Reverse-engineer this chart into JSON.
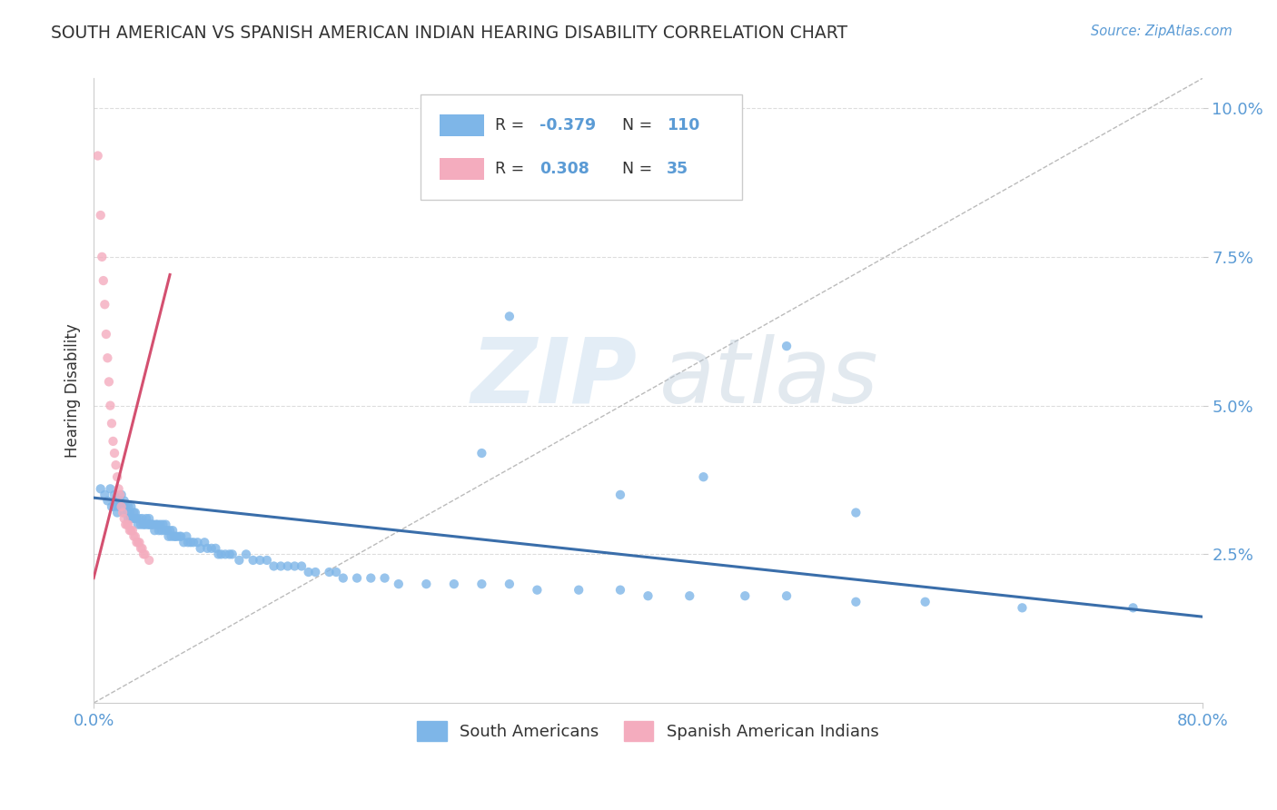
{
  "title": "SOUTH AMERICAN VS SPANISH AMERICAN INDIAN HEARING DISABILITY CORRELATION CHART",
  "source": "Source: ZipAtlas.com",
  "ylabel": "Hearing Disability",
  "xlim": [
    0.0,
    0.8
  ],
  "ylim": [
    0.0,
    0.105
  ],
  "ytick_labels": [
    "2.5%",
    "5.0%",
    "7.5%",
    "10.0%"
  ],
  "ytick_values": [
    0.025,
    0.05,
    0.075,
    0.1
  ],
  "blue_color": "#7EB6E8",
  "pink_color": "#F4ACBE",
  "blue_line_color": "#3A6EAA",
  "pink_line_color": "#D45070",
  "title_color": "#333333",
  "source_color": "#5B9BD5",
  "axis_label_color": "#333333",
  "tick_color": "#5B9BD5",
  "watermark_zip": "ZIP",
  "watermark_atlas": "atlas",
  "background_color": "#FFFFFF",
  "blue_trend_x": [
    0.0,
    0.8
  ],
  "blue_trend_y": [
    0.0345,
    0.0145
  ],
  "pink_trend_x": [
    0.0,
    0.055
  ],
  "pink_trend_y": [
    0.021,
    0.072
  ],
  "blue_scatter_x": [
    0.005,
    0.008,
    0.01,
    0.012,
    0.013,
    0.015,
    0.015,
    0.016,
    0.017,
    0.018,
    0.019,
    0.02,
    0.02,
    0.021,
    0.022,
    0.022,
    0.023,
    0.024,
    0.025,
    0.025,
    0.026,
    0.027,
    0.027,
    0.028,
    0.029,
    0.03,
    0.03,
    0.031,
    0.032,
    0.033,
    0.034,
    0.035,
    0.036,
    0.037,
    0.038,
    0.039,
    0.04,
    0.04,
    0.041,
    0.042,
    0.043,
    0.044,
    0.045,
    0.046,
    0.047,
    0.048,
    0.049,
    0.05,
    0.051,
    0.052,
    0.053,
    0.054,
    0.055,
    0.056,
    0.057,
    0.058,
    0.059,
    0.06,
    0.062,
    0.063,
    0.065,
    0.067,
    0.068,
    0.07,
    0.072,
    0.075,
    0.077,
    0.08,
    0.082,
    0.085,
    0.088,
    0.09,
    0.092,
    0.095,
    0.098,
    0.1,
    0.105,
    0.11,
    0.115,
    0.12,
    0.125,
    0.13,
    0.135,
    0.14,
    0.145,
    0.15,
    0.155,
    0.16,
    0.17,
    0.175,
    0.18,
    0.19,
    0.2,
    0.21,
    0.22,
    0.24,
    0.26,
    0.28,
    0.3,
    0.32,
    0.35,
    0.38,
    0.4,
    0.43,
    0.47,
    0.5,
    0.55,
    0.6,
    0.67,
    0.75
  ],
  "blue_scatter_y": [
    0.036,
    0.035,
    0.034,
    0.036,
    0.033,
    0.035,
    0.033,
    0.034,
    0.032,
    0.033,
    0.034,
    0.035,
    0.033,
    0.033,
    0.032,
    0.034,
    0.033,
    0.032,
    0.031,
    0.033,
    0.032,
    0.031,
    0.033,
    0.031,
    0.032,
    0.031,
    0.032,
    0.031,
    0.03,
    0.031,
    0.03,
    0.031,
    0.03,
    0.03,
    0.031,
    0.03,
    0.03,
    0.031,
    0.03,
    0.03,
    0.03,
    0.029,
    0.03,
    0.03,
    0.029,
    0.03,
    0.029,
    0.03,
    0.029,
    0.03,
    0.029,
    0.028,
    0.029,
    0.028,
    0.029,
    0.028,
    0.028,
    0.028,
    0.028,
    0.028,
    0.027,
    0.028,
    0.027,
    0.027,
    0.027,
    0.027,
    0.026,
    0.027,
    0.026,
    0.026,
    0.026,
    0.025,
    0.025,
    0.025,
    0.025,
    0.025,
    0.024,
    0.025,
    0.024,
    0.024,
    0.024,
    0.023,
    0.023,
    0.023,
    0.023,
    0.023,
    0.022,
    0.022,
    0.022,
    0.022,
    0.021,
    0.021,
    0.021,
    0.021,
    0.02,
    0.02,
    0.02,
    0.02,
    0.02,
    0.019,
    0.019,
    0.019,
    0.018,
    0.018,
    0.018,
    0.018,
    0.017,
    0.017,
    0.016,
    0.016
  ],
  "blue_outliers_x": [
    0.38,
    0.5,
    0.28,
    0.44,
    0.3,
    0.55
  ],
  "blue_outliers_y": [
    0.035,
    0.06,
    0.042,
    0.038,
    0.065,
    0.032
  ],
  "pink_scatter_x": [
    0.003,
    0.005,
    0.006,
    0.007,
    0.008,
    0.009,
    0.01,
    0.011,
    0.012,
    0.013,
    0.014,
    0.015,
    0.016,
    0.017,
    0.018,
    0.019,
    0.02,
    0.021,
    0.022,
    0.023,
    0.024,
    0.025,
    0.026,
    0.027,
    0.028,
    0.029,
    0.03,
    0.031,
    0.032,
    0.033,
    0.034,
    0.035,
    0.036,
    0.037,
    0.04
  ],
  "pink_scatter_y": [
    0.092,
    0.082,
    0.075,
    0.071,
    0.067,
    0.062,
    0.058,
    0.054,
    0.05,
    0.047,
    0.044,
    0.042,
    0.04,
    0.038,
    0.036,
    0.035,
    0.033,
    0.032,
    0.031,
    0.03,
    0.03,
    0.03,
    0.029,
    0.029,
    0.029,
    0.028,
    0.028,
    0.027,
    0.027,
    0.027,
    0.026,
    0.026,
    0.025,
    0.025,
    0.024
  ]
}
